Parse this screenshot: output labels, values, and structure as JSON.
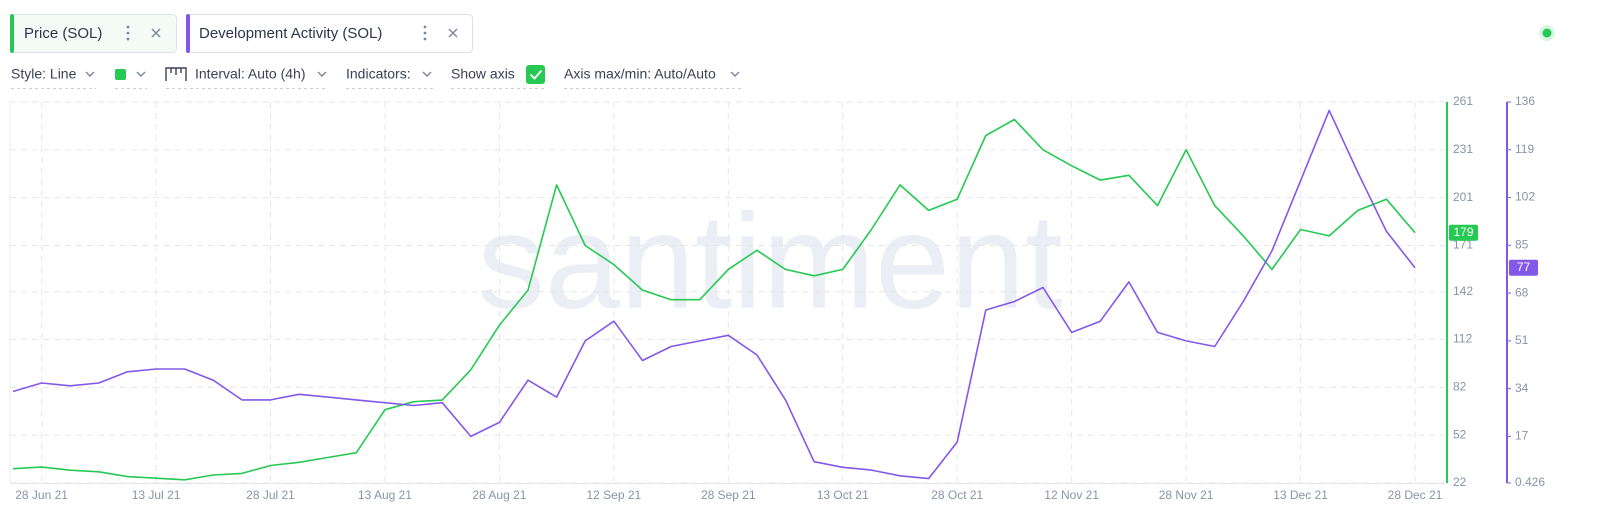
{
  "toolbar": {
    "style": "Style: Line",
    "interval": "Interval: Auto (4h)",
    "indicators": "Indicators:",
    "show_axis": "Show axis",
    "axis_range": "Axis max/min: Auto/Auto"
  },
  "watermark": "santiment",
  "chart_data": {
    "type": "line",
    "categories": [
      null,
      "28 Jun 21",
      null,
      null,
      null,
      "13 Jul 21",
      null,
      null,
      null,
      "28 Jul 21",
      null,
      null,
      null,
      "13 Aug 21",
      null,
      null,
      null,
      "28 Aug 21",
      null,
      null,
      null,
      "12 Sep 21",
      null,
      null,
      null,
      "28 Sep 21",
      null,
      null,
      null,
      "13 Oct 21",
      null,
      null,
      null,
      "28 Oct 21",
      null,
      null,
      null,
      "12 Nov 21",
      null,
      null,
      null,
      "28 Nov 21",
      null,
      null,
      null,
      "13 Dec 21",
      null,
      null,
      null,
      "28 Dec 21"
    ],
    "series": [
      {
        "name": "Price (SOL)",
        "color": "#26c953",
        "axis": "y",
        "values": [
          31,
          32,
          30,
          29,
          26,
          25,
          24,
          27,
          28,
          33,
          35,
          38,
          41,
          68,
          73,
          74,
          93,
          121,
          143,
          209,
          171,
          159,
          143,
          137,
          137,
          156,
          168,
          156,
          152,
          156,
          181,
          209,
          193,
          200,
          240,
          250,
          231,
          221,
          212,
          215,
          196,
          231,
          196,
          177,
          156,
          181,
          177,
          193,
          200,
          179
        ]
      },
      {
        "name": "Development Activity (SOL)",
        "color": "#8358e8",
        "axis": "y2",
        "values": [
          33,
          36,
          35,
          36,
          40,
          41,
          41,
          37,
          30,
          30,
          32,
          31,
          30,
          29,
          28,
          29,
          17,
          22,
          37,
          31,
          51,
          58,
          44,
          49,
          51,
          53,
          46,
          30,
          8,
          6,
          5,
          3,
          2,
          15,
          62,
          65,
          70,
          54,
          58,
          72,
          54,
          51,
          49,
          65,
          83,
          108,
          133,
          111,
          90,
          77
        ]
      }
    ],
    "ylim": [
      22,
      261
    ],
    "yticks": [
      22,
      52,
      82,
      112,
      142,
      171,
      201,
      231,
      261
    ],
    "y2lim": [
      0.426,
      136
    ],
    "y2ticks": [
      0.426,
      17,
      34,
      51,
      68,
      85,
      102,
      119,
      136
    ],
    "grid": true
  }
}
